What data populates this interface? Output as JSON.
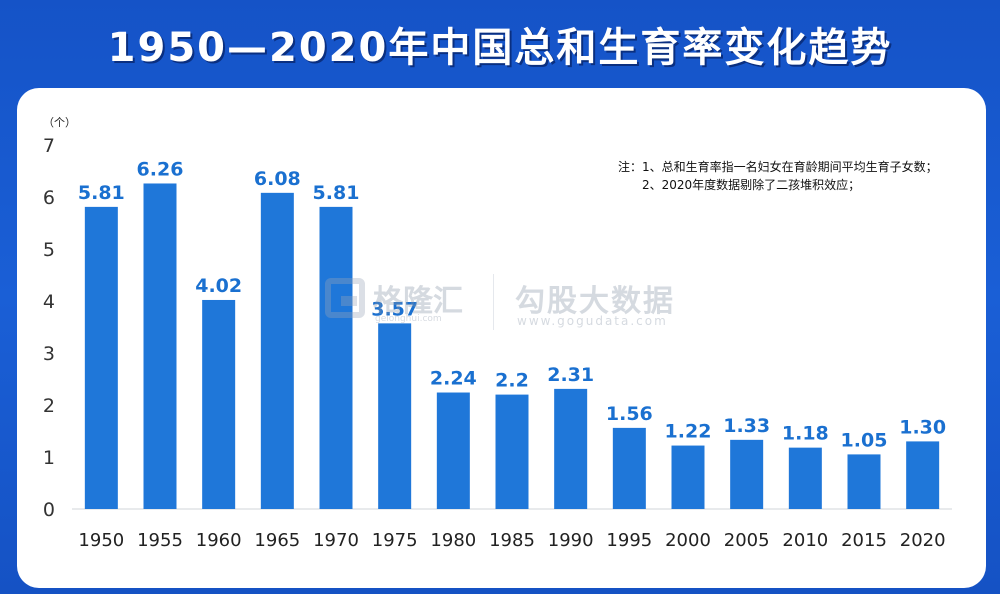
{
  "title": "1950—2020年中国总和生育率变化趋势",
  "notes": [
    "注：1、总和生育率指一名妇女在育龄期间平均生育子女数；",
    "2、2020年度数据剔除了二孩堆积效应；"
  ],
  "watermark": {
    "brand_cn": "格隆汇",
    "brand_en": "gelonghui.com",
    "brand2_cn": "勾股大数据",
    "brand2_en": "www.gogudata.com"
  },
  "colors": {
    "bar": "#1f77d9",
    "label": "#1a70d0",
    "background": "#1553c7"
  },
  "chart_data": {
    "type": "bar",
    "title": "1950—2020年中国总和生育率变化趋势",
    "ylabel": "（个）",
    "xlabel": "",
    "ylim": [
      0,
      7
    ],
    "yticks": [
      "0",
      "1",
      "2",
      "3",
      "4",
      "5",
      "6",
      "7"
    ],
    "grid": false,
    "categories": [
      "1950",
      "1955",
      "1960",
      "1965",
      "1970",
      "1975",
      "1980",
      "1985",
      "1990",
      "1995",
      "2000",
      "2005",
      "2010",
      "2015",
      "2020"
    ],
    "values": [
      5.81,
      6.26,
      4.02,
      6.08,
      5.81,
      3.57,
      2.24,
      2.2,
      2.31,
      1.56,
      1.22,
      1.33,
      1.18,
      1.05,
      1.3
    ],
    "value_labels": [
      "5.81",
      "6.26",
      "4.02",
      "6.08",
      "5.81",
      "3.57",
      "2.24",
      "2.2",
      "2.31",
      "1.56",
      "1.22",
      "1.33",
      "1.18",
      "1.05",
      "1.30"
    ]
  }
}
